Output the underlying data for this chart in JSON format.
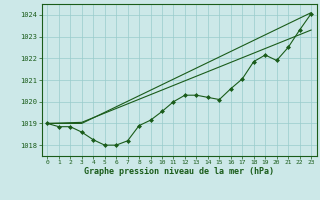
{
  "title": "Graphe pression niveau de la mer (hPa)",
  "bg_color": "#cce8e8",
  "grid_color": "#99cccc",
  "line_color": "#1a5c1a",
  "xlim": [
    -0.5,
    23.5
  ],
  "ylim": [
    1017.5,
    1024.5
  ],
  "yticks": [
    1018,
    1019,
    1020,
    1021,
    1022,
    1023,
    1024
  ],
  "xticks": [
    0,
    1,
    2,
    3,
    4,
    5,
    6,
    7,
    8,
    9,
    10,
    11,
    12,
    13,
    14,
    15,
    16,
    17,
    18,
    19,
    20,
    21,
    22,
    23
  ],
  "line_curve": {
    "x": [
      0,
      1,
      2,
      3,
      4,
      5,
      6,
      7,
      8,
      9,
      10,
      11,
      12,
      13,
      14,
      15,
      16,
      17,
      18,
      19,
      20,
      21,
      22,
      23
    ],
    "y": [
      1019.0,
      1018.85,
      1018.85,
      1018.6,
      1018.25,
      1018.0,
      1018.0,
      1018.2,
      1018.9,
      1019.15,
      1019.55,
      1020.0,
      1020.3,
      1020.3,
      1020.2,
      1020.1,
      1020.6,
      1021.05,
      1021.85,
      1022.15,
      1021.9,
      1022.5,
      1023.3,
      1024.05
    ]
  },
  "line_straight1": {
    "x": [
      0,
      3,
      23
    ],
    "y": [
      1019.0,
      1019.0,
      1024.1
    ]
  },
  "line_straight2": {
    "x": [
      0,
      3,
      23
    ],
    "y": [
      1019.0,
      1019.05,
      1023.3
    ]
  }
}
